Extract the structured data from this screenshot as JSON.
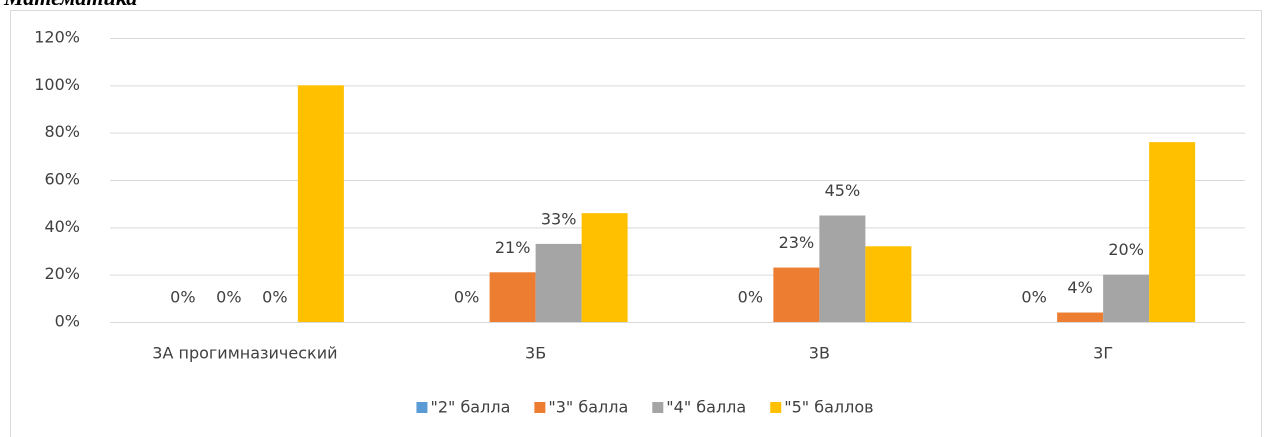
{
  "chart_data": {
    "type": "bar",
    "title": "Математика",
    "categories": [
      "3А прогимназический",
      "3Б",
      "3В",
      "3Г"
    ],
    "series": [
      {
        "name": "\"2\" балла",
        "color": "#5b9bd5",
        "values": [
          0,
          0,
          0,
          0
        ],
        "value_labels": [
          "0%",
          "0%",
          "0%",
          "0%"
        ]
      },
      {
        "name": "\"3\" балла",
        "color": "#ed7d31",
        "values": [
          0,
          21,
          23,
          4
        ],
        "value_labels": [
          "0%",
          "21%",
          "23%",
          "4%"
        ]
      },
      {
        "name": "\"4\" балла",
        "color": "#a5a5a5",
        "values": [
          0,
          33,
          45,
          20
        ],
        "value_labels": [
          "0%",
          "33%",
          "45%",
          "20%"
        ]
      },
      {
        "name": "\"5\" баллов",
        "color": "#ffc000",
        "values": [
          100,
          46,
          32,
          76
        ]
      }
    ],
    "ylim": [
      0,
      120
    ],
    "yticks": [
      {
        "value": 0,
        "label": "0%"
      },
      {
        "value": 20,
        "label": "20%"
      },
      {
        "value": 40,
        "label": "40%"
      },
      {
        "value": 60,
        "label": "60%"
      },
      {
        "value": 80,
        "label": "80%"
      },
      {
        "value": 100,
        "label": "100%"
      },
      {
        "value": 120,
        "label": "120%"
      }
    ],
    "grid": true,
    "legend": "bottom"
  }
}
